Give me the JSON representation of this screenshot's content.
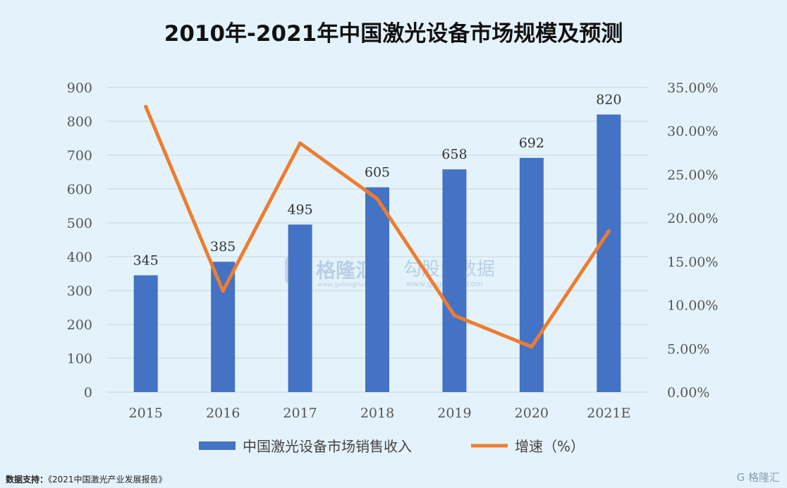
{
  "chart_data": {
    "type": "bar",
    "title": "2010年-2021年中国激光设备市场规模及预测",
    "categories": [
      "2015",
      "2016",
      "2017",
      "2018",
      "2019",
      "2020",
      "2021E"
    ],
    "series": [
      {
        "name": "中国激光设备市场销售收入",
        "type": "bar",
        "axis": "left",
        "color": "#4472c4",
        "values": [
          345,
          385,
          495,
          605,
          658,
          692,
          820
        ]
      },
      {
        "name": "增速（%）",
        "type": "line",
        "axis": "right",
        "color": "#ed7d31",
        "values": [
          32.8,
          11.6,
          28.6,
          22.2,
          8.8,
          5.2,
          18.5
        ]
      }
    ],
    "y_left": {
      "min": 0,
      "max": 900,
      "ticks": [
        "0",
        "100",
        "200",
        "300",
        "400",
        "500",
        "600",
        "700",
        "800",
        "900"
      ]
    },
    "y_right": {
      "min": 0,
      "max": 35,
      "ticks": [
        "0.00%",
        "5.00%",
        "10.00%",
        "15.00%",
        "20.00%",
        "25.00%",
        "30.00%",
        "35.00%"
      ]
    },
    "grid": true,
    "legend": "bottom",
    "data_labels": [
      "345",
      "385",
      "495",
      "605",
      "658",
      "692",
      "820"
    ]
  },
  "watermark": {
    "brand1": "格隆汇",
    "url1": "www.gelonghui.com",
    "brand2": "勾股大数据",
    "url2": "www.gogudata.com"
  },
  "footer": {
    "label": "数据支持：",
    "source": "《2021中国激光产业发展报告》"
  },
  "corner_logo": "G 格隆汇"
}
